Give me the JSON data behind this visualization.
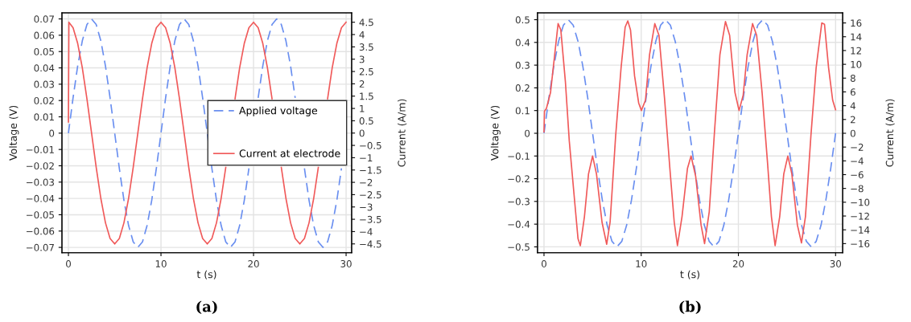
{
  "chart_data": [
    {
      "type": "line",
      "xlabel": "t (s)",
      "ylabel": "Voltage (V)",
      "y2label": "Current (A/m)",
      "annotations": [
        "(a)"
      ],
      "xlim": [
        -0.7,
        30.6
      ],
      "xticks": [
        0,
        10,
        20,
        30
      ],
      "ylim": [
        -0.0733,
        0.0737
      ],
      "yticks": [
        -0.07,
        -0.06,
        -0.05,
        -0.04,
        -0.03,
        -0.02,
        -0.01,
        0,
        0.01,
        0.02,
        0.03,
        0.04,
        0.05,
        0.06,
        0.07
      ],
      "y2lim": [
        -4.86,
        4.88
      ],
      "y2ticks": [
        -4.5,
        -4,
        -3.5,
        -3,
        -2.5,
        -2,
        -1.5,
        -1,
        -0.5,
        0,
        0.5,
        1,
        1.5,
        2,
        2.5,
        3,
        3.5,
        4,
        4.5
      ],
      "grid": true,
      "legend": "right",
      "series": [
        {
          "name": "Applied voltage",
          "color": "#6a8ff0",
          "line_style": "dashed",
          "x": [
            0,
            0.5,
            1,
            1.5,
            2,
            2.5,
            3,
            3.5,
            4,
            4.5,
            5,
            5.5,
            6,
            6.5,
            7,
            7.5,
            8,
            8.5,
            9,
            9.5,
            10,
            10.5,
            11,
            11.5,
            12,
            12.5,
            13,
            13.5,
            14,
            14.5,
            15,
            15.5,
            16,
            16.5,
            17,
            17.5,
            18,
            18.5,
            19,
            19.5,
            20,
            20.5,
            21,
            21.5,
            22,
            22.5,
            23,
            23.5,
            24,
            24.5,
            25,
            25.5,
            26,
            26.5,
            27,
            27.5,
            28,
            28.5,
            29,
            29.5
          ],
          "values": [
            0,
            0.0216,
            0.0412,
            0.0566,
            0.0666,
            0.07,
            0.0666,
            0.0566,
            0.0412,
            0.0216,
            0,
            -0.0216,
            -0.0412,
            -0.0566,
            -0.0666,
            -0.07,
            -0.0666,
            -0.0566,
            -0.0412,
            -0.0216,
            0,
            0.0216,
            0.0412,
            0.0566,
            0.0666,
            0.07,
            0.0666,
            0.0566,
            0.0412,
            0.0216,
            0,
            -0.0216,
            -0.0412,
            -0.0566,
            -0.0666,
            -0.07,
            -0.0666,
            -0.0566,
            -0.0412,
            -0.0216,
            null,
            0.0216,
            0.0412,
            0.0566,
            0.0666,
            0.07,
            0.0666,
            0.0566,
            0.0412,
            0.0216,
            null,
            -0.0216,
            -0.0412,
            -0.0566,
            -0.0666,
            -0.07,
            -0.0666,
            -0.0566,
            -0.0412,
            -0.0216
          ]
        },
        {
          "name": "Current at electrode",
          "color": "#f05a5a",
          "line_style": "solid",
          "axis": "y2",
          "x": [
            0,
            0.05,
            0.5,
            1,
            1.5,
            2,
            2.5,
            3,
            3.5,
            4,
            4.5,
            5,
            5.5,
            6,
            6.5,
            7,
            7.5,
            8,
            8.5,
            9,
            9.5,
            10,
            10.5,
            11,
            11.5,
            12,
            12.5,
            13,
            13.5,
            14,
            14.5,
            15,
            15.5,
            16,
            16.5,
            17,
            17.5,
            18,
            18.5,
            19,
            19.5,
            20,
            20.5,
            21,
            21.5,
            22,
            22.5,
            23,
            23.5,
            24,
            24.5,
            25,
            25.5,
            26,
            26.5,
            27,
            27.5,
            28,
            28.5,
            29,
            29.5,
            30
          ],
          "values": [
            0.45,
            4.5,
            4.28,
            3.64,
            2.65,
            1.39,
            0,
            -1.39,
            -2.65,
            -3.64,
            -4.28,
            -4.5,
            -4.28,
            -3.64,
            -2.65,
            -1.39,
            0,
            1.39,
            2.65,
            3.64,
            4.28,
            4.5,
            4.28,
            3.64,
            2.65,
            1.39,
            0,
            -1.39,
            -2.65,
            -3.64,
            -4.28,
            -4.5,
            -4.28,
            -3.64,
            -2.65,
            -1.39,
            null,
            1.39,
            2.65,
            3.64,
            4.28,
            4.5,
            4.28,
            3.64,
            2.65,
            1.39,
            null,
            -1.39,
            -2.65,
            -3.64,
            -4.28,
            -4.5,
            -4.28,
            -3.64,
            -2.65,
            -1.39,
            null,
            1.39,
            2.65,
            3.64,
            4.28,
            4.5
          ]
        }
      ]
    },
    {
      "type": "line",
      "xlabel": "t (s)",
      "ylabel": "Voltage (V)",
      "y2label": "Current (A/m)",
      "annotations": [
        "(b)"
      ],
      "xlim": [
        -0.67,
        30.73
      ],
      "xticks": [
        0,
        10,
        20,
        30
      ],
      "ylim": [
        -0.526,
        0.53
      ],
      "yticks": [
        -0.5,
        -0.4,
        -0.3,
        -0.2,
        -0.1,
        0,
        0.1,
        0.2,
        0.3,
        0.4,
        0.5
      ],
      "y2lim": [
        -17.33,
        17.46
      ],
      "y2ticks": [
        -16,
        -14,
        -12,
        -10,
        -8,
        -6,
        -4,
        -2,
        0,
        2,
        4,
        6,
        8,
        10,
        12,
        14,
        16
      ],
      "grid": true,
      "series": [
        {
          "color": "#6a8ff0",
          "line_style": "dashed",
          "x": [
            0,
            0.5,
            1,
            1.5,
            2,
            2.5,
            3,
            3.5,
            4,
            4.5,
            5,
            5.5,
            6,
            6.5,
            7,
            7.5,
            8,
            8.5,
            9,
            9.5,
            10,
            10.5,
            11,
            11.5,
            12,
            12.5,
            13,
            13.5,
            14,
            14.5,
            15,
            15.5,
            16,
            16.5,
            17,
            17.5,
            18,
            18.5,
            19,
            19.5,
            20,
            20.5,
            21,
            21.5,
            22,
            22.5,
            23,
            23.5,
            24,
            24.5,
            25,
            25.5,
            26,
            26.5,
            27,
            27.5,
            28,
            28.5,
            29,
            29.5,
            30
          ],
          "values": [
            0,
            0.155,
            0.294,
            0.405,
            0.476,
            0.5,
            0.476,
            0.405,
            0.294,
            0.155,
            0,
            -0.155,
            -0.294,
            -0.405,
            -0.476,
            -0.5,
            -0.476,
            -0.405,
            -0.294,
            -0.155,
            0,
            0.155,
            0.294,
            0.405,
            0.476,
            0.5,
            0.476,
            0.405,
            0.294,
            0.155,
            0,
            -0.155,
            -0.294,
            -0.405,
            -0.476,
            -0.5,
            -0.476,
            -0.405,
            -0.294,
            -0.155,
            0,
            0.155,
            0.294,
            0.405,
            0.476,
            0.5,
            0.476,
            0.405,
            0.294,
            0.155,
            0,
            -0.155,
            -0.294,
            -0.405,
            -0.476,
            -0.5,
            -0.476,
            -0.405,
            -0.294,
            -0.155,
            0
          ]
        },
        {
          "color": "#f05a5a",
          "line_style": "solid",
          "axis": "y2",
          "x": [
            0,
            0.05,
            0.25,
            0.67,
            1.1,
            1.45,
            1.73,
            2.2,
            2.6,
            3.2,
            3.5,
            3.74,
            4.16,
            4.58,
            5.0,
            5.4,
            5.97,
            6.45,
            6.8,
            7.37,
            7.93,
            8.35,
            8.62,
            8.9,
            9.32,
            9.74,
            10.02,
            10.44,
            10.86,
            11.4,
            11.83,
            12.4,
            12.95,
            13.4,
            13.73,
            14.2,
            14.76,
            15.13,
            15.6,
            16.16,
            16.52,
            17.0,
            17.55,
            18.1,
            18.67,
            19.1,
            19.65,
            20.07,
            20.49,
            20.9,
            21.46,
            21.88,
            22.44,
            23.0,
            23.4,
            23.78,
            24.25,
            24.67,
            25.09,
            25.5,
            26.07,
            26.49,
            26.9,
            27.46,
            28.0,
            28.58,
            28.86,
            29.28,
            29.7,
            30
          ],
          "values": [
            0.2,
            3.2,
            3.6,
            5.9,
            11.4,
            15.9,
            15,
            7.5,
            -1.1,
            -10.6,
            -15.3,
            -16.3,
            -12.1,
            -5.9,
            -3.3,
            -5.9,
            -12.9,
            -16.1,
            -12.9,
            -0.4,
            9.5,
            15.4,
            16.3,
            15,
            8.3,
            4.4,
            3.3,
            4.8,
            11.4,
            15.9,
            14.2,
            5.1,
            -5.1,
            -12.9,
            -16.3,
            -12.1,
            -5.1,
            -3.3,
            -6.2,
            -13.3,
            -16,
            -11.4,
            0.4,
            11.4,
            16.2,
            14.2,
            5.9,
            3.3,
            5.5,
            11.4,
            15.9,
            14.2,
            5.9,
            -4.3,
            -12.1,
            -16.3,
            -12.1,
            -5.9,
            -3.3,
            -5.9,
            -13.3,
            -15.9,
            -12.1,
            -0.4,
            9.5,
            16,
            15.8,
            9.5,
            4.8,
            3.4
          ]
        }
      ]
    }
  ]
}
